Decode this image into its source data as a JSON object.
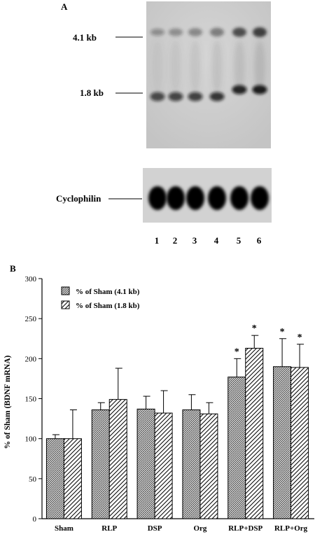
{
  "panel_a": {
    "label": "A",
    "marker_upper": "4.1 kb",
    "marker_lower": "1.8 kb",
    "cyclophilin_label": "Cyclophilin",
    "lane_numbers": [
      "1",
      "2",
      "3",
      "4",
      "5",
      "6"
    ]
  },
  "panel_b": {
    "label": "B"
  },
  "chart_data": {
    "type": "bar",
    "categories": [
      "Sham",
      "RLP",
      "DSP",
      "Org",
      "RLP+DSP",
      "RLP+Org"
    ],
    "series": [
      {
        "name": "% of Sham (4.1 kb)",
        "values": [
          100,
          136,
          137,
          136,
          177,
          190
        ],
        "error": [
          5,
          9,
          16,
          19,
          23,
          35
        ],
        "pattern": "crosshatch"
      },
      {
        "name": "% of Sham (1.8 kb)",
        "values": [
          100,
          149,
          132,
          131,
          213,
          189
        ],
        "error": [
          36,
          39,
          28,
          14,
          16,
          29
        ],
        "pattern": "diagonal"
      }
    ],
    "significance": [
      [
        "",
        "",
        "",
        "",
        "*",
        "*"
      ],
      [
        "",
        "",
        "",
        "",
        "*",
        "*"
      ]
    ],
    "ylabel": "% of Sham (BDNF mRNA)",
    "xlabel": "",
    "ylim": [
      0,
      300
    ],
    "yticks": [
      0,
      50,
      100,
      150,
      200,
      250,
      300
    ],
    "legend_position": "top-left",
    "grid": false
  }
}
